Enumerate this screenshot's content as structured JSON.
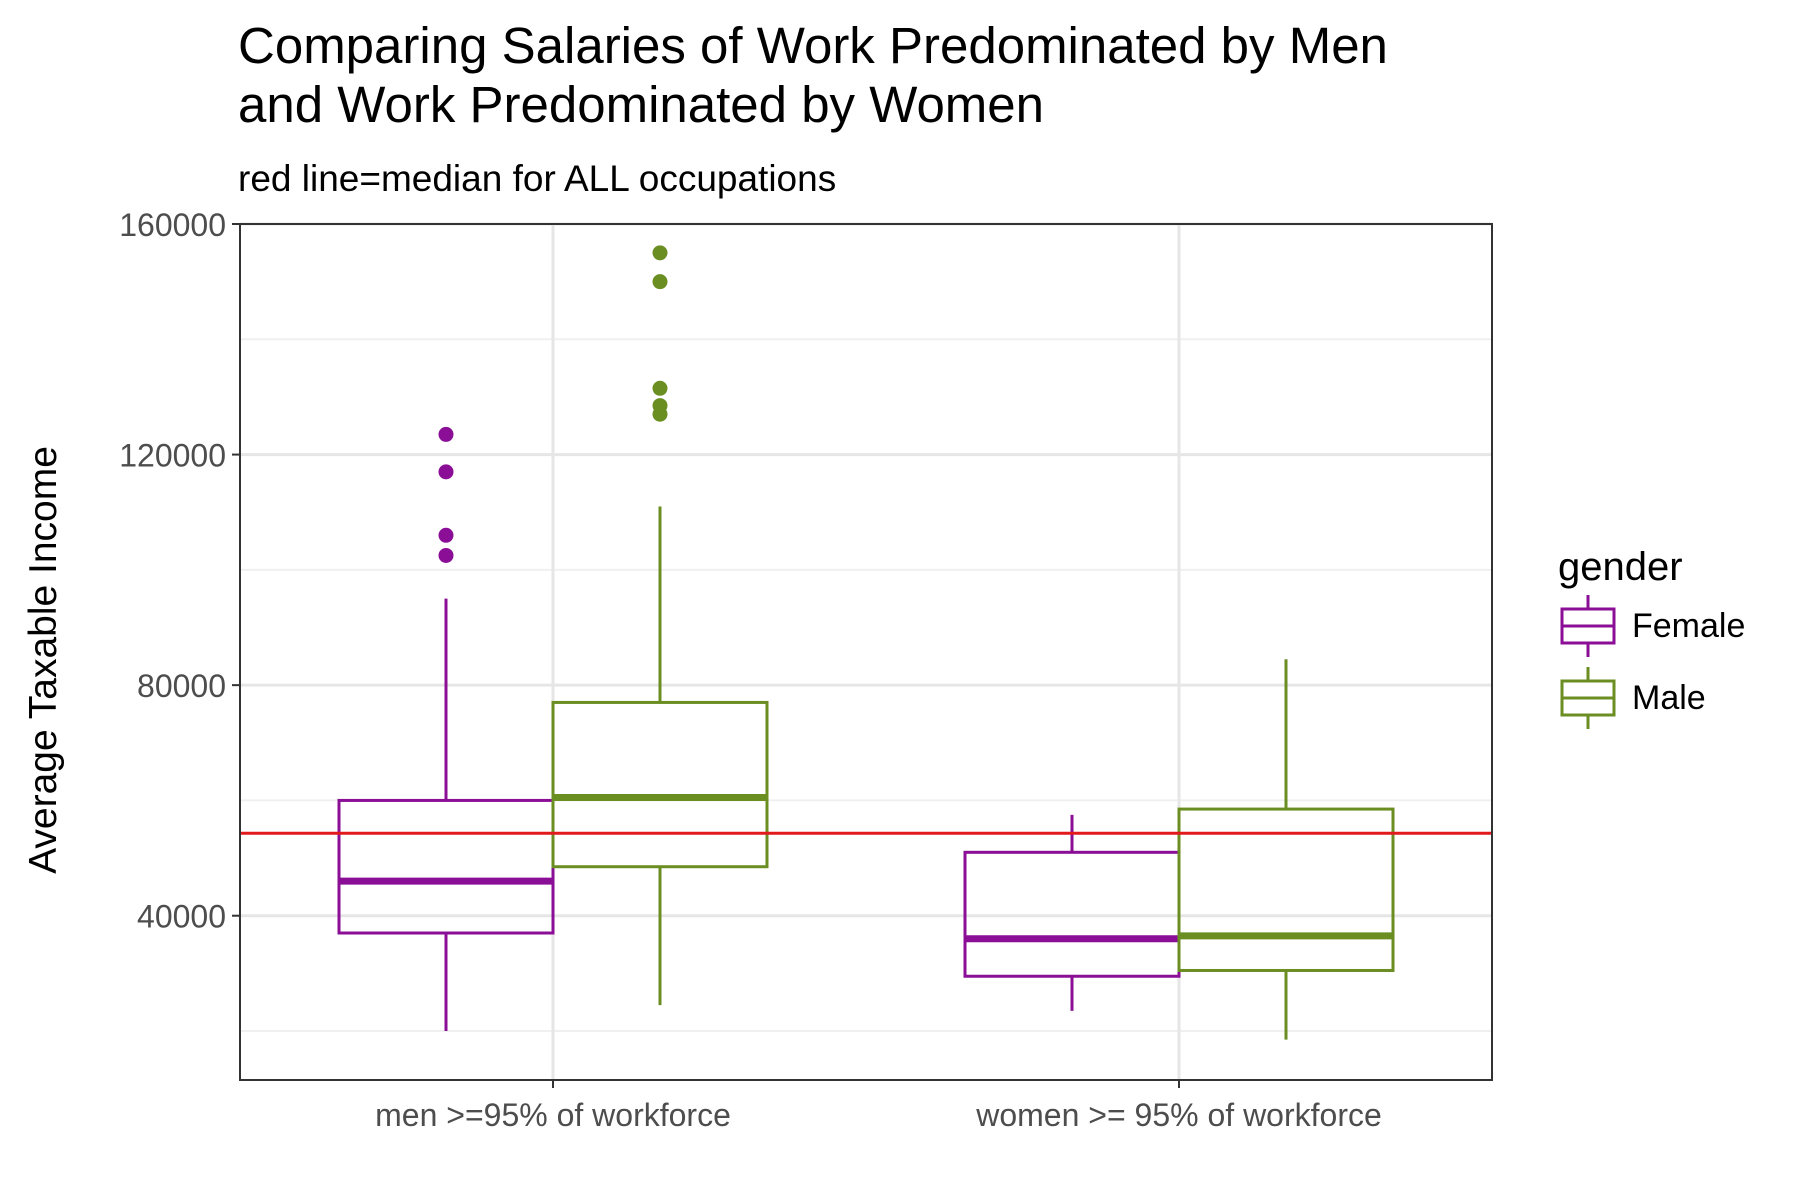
{
  "chart_data": {
    "type": "boxplot",
    "title_lines": [
      "Comparing Salaries of Work Predominated by Men",
      "and Work Predominated by Women"
    ],
    "subtitle": "red line=median for ALL occupations",
    "xlabel": "",
    "ylabel": "Average Taxable Income",
    "ylim": [
      11500,
      160000
    ],
    "y_ticks": [
      40000,
      80000,
      120000,
      160000
    ],
    "y_tick_labels": [
      "40000",
      "80000",
      "120000",
      "160000"
    ],
    "categories": [
      "men >=95% of workforce",
      "women >= 95% of workforce"
    ],
    "reference_line": {
      "y": 54300,
      "color": "#e31a1c"
    },
    "legend": {
      "title": "gender",
      "placement": "right"
    },
    "grid": true,
    "series": [
      {
        "name": "Female",
        "color": "#8b0f96",
        "boxes": [
          {
            "category": "men >=95% of workforce",
            "min": 20000,
            "q1": 37000,
            "median": 46000,
            "q3": 60000,
            "max": 95000,
            "outliers": [
              102500,
              106000,
              117000,
              123500
            ]
          },
          {
            "category": "women >= 95% of workforce",
            "min": 23500,
            "q1": 29500,
            "median": 36000,
            "q3": 51000,
            "max": 57500,
            "outliers": []
          }
        ]
      },
      {
        "name": "Male",
        "color": "#6b8e23",
        "boxes": [
          {
            "category": "men >=95% of workforce",
            "min": 24500,
            "q1": 48500,
            "median": 60500,
            "q3": 77000,
            "max": 111000,
            "outliers": [
              127000,
              128500,
              131500,
              150000,
              155000
            ]
          },
          {
            "category": "women >= 95% of workforce",
            "min": 18500,
            "q1": 30500,
            "median": 36500,
            "q3": 58500,
            "max": 84500,
            "outliers": []
          }
        ]
      }
    ]
  }
}
